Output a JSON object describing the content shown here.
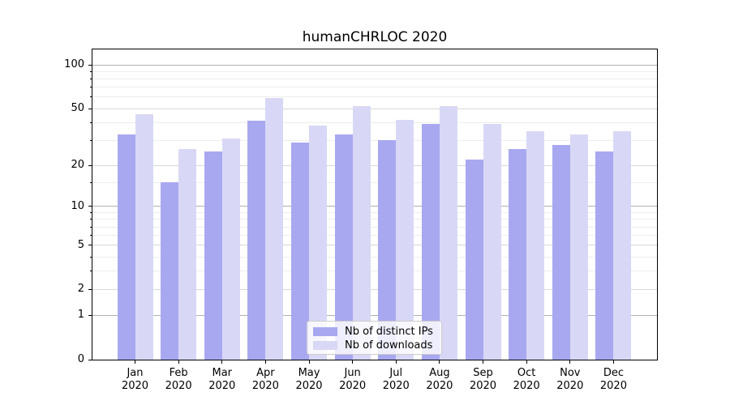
{
  "chart_data": {
    "type": "bar",
    "title": "humanCHRLOC 2020",
    "categories": [
      "Jan 2020",
      "Feb 2020",
      "Mar 2020",
      "Apr 2020",
      "May 2020",
      "Jun 2020",
      "Jul 2020",
      "Aug 2020",
      "Sep 2020",
      "Oct 2020",
      "Nov 2020",
      "Dec 2020"
    ],
    "series": [
      {
        "name": "Nb of distinct IPs",
        "color": "#a8a8f0",
        "values": [
          33,
          15,
          25,
          41,
          29,
          33,
          30,
          39,
          22,
          26,
          28,
          25
        ]
      },
      {
        "name": "Nb of downloads",
        "color": "#d8d8f6",
        "values": [
          46,
          26,
          31,
          59,
          38,
          52,
          42,
          52,
          39,
          35,
          33,
          35
        ]
      }
    ],
    "xlabel": "",
    "ylabel": "",
    "y_scale": "log10(1+y)",
    "ylim": [
      0,
      126
    ],
    "y_ticks_labeled": [
      0,
      1,
      2,
      5,
      10,
      20,
      50,
      100
    ],
    "y_gridlines": {
      "major": [
        1,
        10,
        100
      ],
      "mid": [
        2,
        5,
        20,
        50
      ],
      "minor": [
        3,
        4,
        6,
        7,
        8,
        9,
        15,
        30,
        40,
        60,
        70,
        80,
        90
      ]
    },
    "grid": "horizontal",
    "legend_position": "inside-bottom-center",
    "colors": {
      "grid_major": "#b0b0b0",
      "grid_mid": "#d8d8d8",
      "grid_minor": "#ededed",
      "spine": "#000000",
      "text": "#000000",
      "background": "#ffffff"
    }
  }
}
